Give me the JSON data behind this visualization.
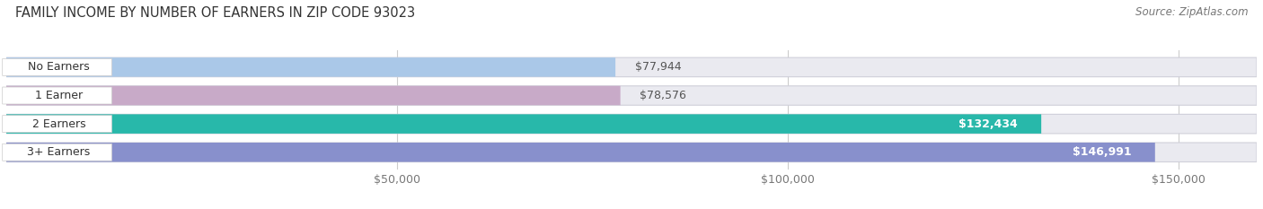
{
  "title": "FAMILY INCOME BY NUMBER OF EARNERS IN ZIP CODE 93023",
  "source": "Source: ZipAtlas.com",
  "categories": [
    "No Earners",
    "1 Earner",
    "2 Earners",
    "3+ Earners"
  ],
  "values": [
    77944,
    78576,
    132434,
    146991
  ],
  "bar_colors": [
    "#aac8e8",
    "#c8aac8",
    "#28b8aa",
    "#8890cc"
  ],
  "label_colors": [
    "#555555",
    "#555555",
    "#ffffff",
    "#ffffff"
  ],
  "x_min": 0,
  "x_max": 160000,
  "x_ticks": [
    50000,
    100000,
    150000
  ],
  "x_tick_labels": [
    "$50,000",
    "$100,000",
    "$150,000"
  ],
  "bar_bg_color": "#eaeaf0",
  "bar_outline_color": "#d0d0da",
  "title_fontsize": 10.5,
  "source_fontsize": 8.5,
  "label_fontsize": 9,
  "tick_fontsize": 9,
  "bar_height": 0.68,
  "fig_width": 14.06,
  "fig_height": 2.33
}
